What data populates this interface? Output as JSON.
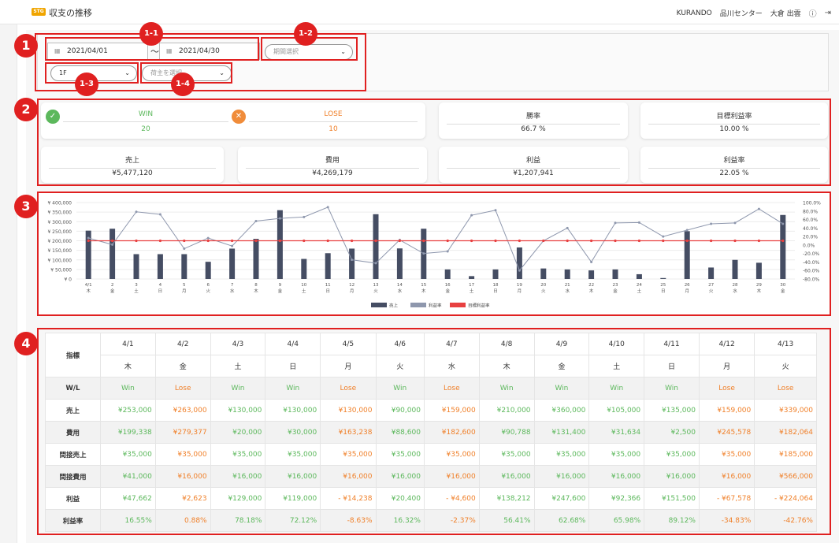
{
  "header": {
    "badge": "STG",
    "title": "収支の推移",
    "company": "KURANDO",
    "center": "品川センター",
    "user": "大倉 出雲",
    "help_icon": "help-icon",
    "logout_icon": "logout-icon"
  },
  "markers": {
    "m1": "1",
    "m2": "2",
    "m3": "3",
    "m4": "4",
    "m11": "1-1",
    "m12": "1-2",
    "m13": "1-3",
    "m14": "1-4"
  },
  "filters": {
    "date_from": "2021/04/01",
    "tilde": "〜",
    "date_to": "2021/04/30",
    "period_placeholder": "期間選択",
    "floor_value": "1F",
    "shipper_placeholder": "荷主を選択"
  },
  "summary": {
    "win_label": "WIN",
    "win_value": "20",
    "lose_label": "LOSE",
    "lose_value": "10",
    "win_rate_label": "勝率",
    "win_rate_value": "66.7 %",
    "target_margin_label": "目標利益率",
    "target_margin_value": "10.00 %",
    "sales_label": "売上",
    "sales_value": "¥5,477,120",
    "cost_label": "費用",
    "cost_value": "¥4,269,179",
    "profit_label": "利益",
    "profit_value": "¥1,207,941",
    "margin_label": "利益率",
    "margin_value": "22.05 %"
  },
  "chart_data": {
    "type": "bar",
    "categories": [
      "4/1",
      "4/2",
      "4/3",
      "4/4",
      "4/5",
      "4/6",
      "4/7",
      "4/8",
      "4/9",
      "4/10",
      "4/11",
      "4/12",
      "4/13",
      "4/14",
      "4/15",
      "4/16",
      "4/17",
      "4/18",
      "4/19",
      "4/20",
      "4/21",
      "4/22",
      "4/23",
      "4/24",
      "4/25",
      "4/26",
      "4/27",
      "4/28",
      "4/29",
      "4/30"
    ],
    "x_day": [
      "4/1",
      "2",
      "3",
      "4",
      "5",
      "6",
      "7",
      "8",
      "9",
      "10",
      "11",
      "12",
      "13",
      "14",
      "15",
      "16",
      "17",
      "18",
      "19",
      "20",
      "21",
      "22",
      "23",
      "24",
      "25",
      "26",
      "27",
      "28",
      "29",
      "30"
    ],
    "x_weekday": [
      "木",
      "金",
      "土",
      "日",
      "月",
      "火",
      "水",
      "木",
      "金",
      "土",
      "日",
      "月",
      "火",
      "水",
      "木",
      "金",
      "土",
      "日",
      "月",
      "火",
      "水",
      "木",
      "金",
      "土",
      "日",
      "月",
      "火",
      "水",
      "木",
      "金"
    ],
    "y_ticks_left": [
      "¥ 400,000",
      "¥ 350,000",
      "¥ 300,000",
      "¥ 250,000",
      "¥ 200,000",
      "¥ 150,000",
      "¥ 100,000",
      "¥ 50,000",
      "¥ 0"
    ],
    "y_ticks_right": [
      "100.0%",
      "80.0%",
      "60.0%",
      "40.0%",
      "20.0%",
      "0.0%",
      "-20.0%",
      "-40.0%",
      "-60.0%",
      "-80.0%"
    ],
    "ylim": [
      0,
      400000
    ],
    "ylim_right": [
      -80,
      100
    ],
    "series": [
      {
        "name": "売上",
        "type": "bar",
        "color": "#454d63",
        "values": [
          253000,
          263000,
          130000,
          130000,
          130000,
          90000,
          159000,
          210000,
          360000,
          105000,
          135000,
          159000,
          339000,
          160000,
          263000,
          50000,
          15000,
          50000,
          165000,
          55000,
          50000,
          45000,
          50000,
          25000,
          5000,
          250000,
          60000,
          100000,
          85000,
          335000
        ]
      },
      {
        "name": "利益率",
        "type": "line",
        "color": "#8e97ad",
        "values": [
          16.55,
          0.88,
          78.18,
          72.12,
          -8.63,
          16.32,
          -2.37,
          56.41,
          62.68,
          65.98,
          89.12,
          -34.83,
          -42.76,
          12,
          -20,
          -15,
          70,
          82,
          -60,
          10,
          40,
          -40,
          52,
          53,
          20,
          35,
          50,
          52,
          85,
          50
        ]
      },
      {
        "name": "目標利益率",
        "type": "line",
        "color": "#e84040",
        "values": [
          10,
          10,
          10,
          10,
          10,
          10,
          10,
          10,
          10,
          10,
          10,
          10,
          10,
          10,
          10,
          10,
          10,
          10,
          10,
          10,
          10,
          10,
          10,
          10,
          10,
          10,
          10,
          10,
          10,
          10
        ]
      }
    ],
    "legend": [
      "売上",
      "利益率",
      "目標利益率"
    ],
    "legend_position": "bottom"
  },
  "table": {
    "indicator_label": "指標",
    "dates": [
      "4/1",
      "4/2",
      "4/3",
      "4/4",
      "4/5",
      "4/6",
      "4/7",
      "4/8",
      "4/9",
      "4/10",
      "4/11",
      "4/12",
      "4/13"
    ],
    "weekdays": [
      "木",
      "金",
      "土",
      "日",
      "月",
      "火",
      "水",
      "木",
      "金",
      "土",
      "日",
      "月",
      "火"
    ],
    "rows": [
      {
        "label": "W/L",
        "values": [
          "Win",
          "Lose",
          "Win",
          "Win",
          "Lose",
          "Win",
          "Lose",
          "Win",
          "Win",
          "Win",
          "Win",
          "Lose",
          "Lose"
        ]
      },
      {
        "label": "売上",
        "values": [
          "¥253,000",
          "¥263,000",
          "¥130,000",
          "¥130,000",
          "¥130,000",
          "¥90,000",
          "¥159,000",
          "¥210,000",
          "¥360,000",
          "¥105,000",
          "¥135,000",
          "¥159,000",
          "¥339,000"
        ]
      },
      {
        "label": "費用",
        "values": [
          "¥199,338",
          "¥279,377",
          "¥20,000",
          "¥30,000",
          "¥163,238",
          "¥88,600",
          "¥182,600",
          "¥90,788",
          "¥131,400",
          "¥31,634",
          "¥2,500",
          "¥245,578",
          "¥182,064"
        ]
      },
      {
        "label": "間接売上",
        "values": [
          "¥35,000",
          "¥35,000",
          "¥35,000",
          "¥35,000",
          "¥35,000",
          "¥35,000",
          "¥35,000",
          "¥35,000",
          "¥35,000",
          "¥35,000",
          "¥35,000",
          "¥35,000",
          "¥185,000"
        ]
      },
      {
        "label": "間接費用",
        "values": [
          "¥41,000",
          "¥16,000",
          "¥16,000",
          "¥16,000",
          "¥16,000",
          "¥16,000",
          "¥16,000",
          "¥16,000",
          "¥16,000",
          "¥16,000",
          "¥16,000",
          "¥16,000",
          "¥566,000"
        ]
      },
      {
        "label": "利益",
        "values": [
          "¥47,662",
          "¥2,623",
          "¥129,000",
          "¥119,000",
          "- ¥14,238",
          "¥20,400",
          "- ¥4,600",
          "¥138,212",
          "¥247,600",
          "¥92,366",
          "¥151,500",
          "- ¥67,578",
          "- ¥224,064"
        ]
      },
      {
        "label": "利益率",
        "values": [
          "16.55%",
          "0.88%",
          "78.18%",
          "72.12%",
          "-8.63%",
          "16.32%",
          "-2.37%",
          "56.41%",
          "62.68%",
          "65.98%",
          "89.12%",
          "-34.83%",
          "-42.76%"
        ]
      }
    ],
    "column_status": [
      "win",
      "lose",
      "win",
      "win",
      "lose",
      "win",
      "lose",
      "win",
      "win",
      "win",
      "win",
      "lose",
      "lose"
    ]
  },
  "colors": {
    "win": "#5cb85c",
    "lose": "#f0802a",
    "marker": "#e02020",
    "bar": "#454d63"
  }
}
